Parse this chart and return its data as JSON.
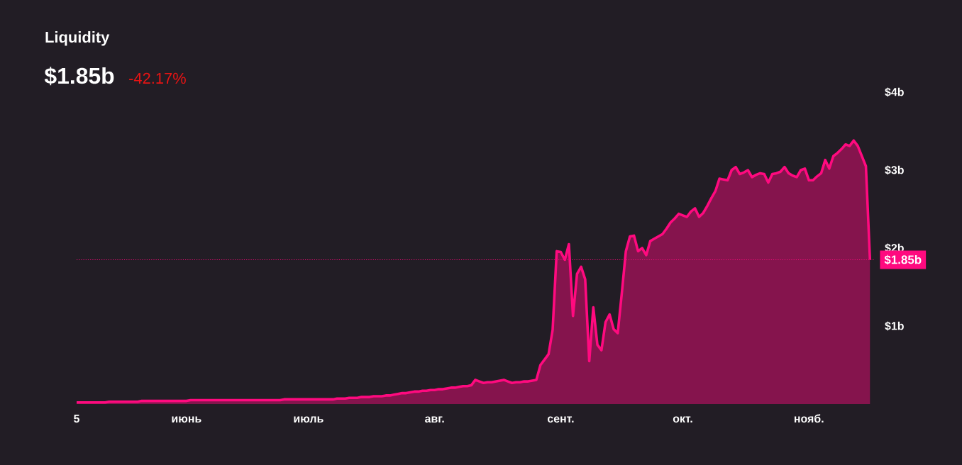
{
  "chart_data": {
    "type": "area",
    "title": "Liquidity",
    "subtitle": "$1.85b",
    "annotations": [
      "-42.17%"
    ],
    "categories": [
      "5",
      null,
      null,
      null,
      null,
      null,
      null,
      null,
      null,
      null,
      null,
      null,
      null,
      null,
      null,
      null,
      null,
      null,
      null,
      null,
      null,
      null,
      null,
      null,
      null,
      null,
      null,
      "июнь",
      null,
      null,
      null,
      null,
      null,
      null,
      null,
      null,
      null,
      null,
      null,
      null,
      null,
      null,
      null,
      null,
      null,
      null,
      null,
      null,
      null,
      null,
      null,
      null,
      null,
      null,
      null,
      null,
      null,
      "июль",
      null,
      null,
      null,
      null,
      null,
      null,
      null,
      null,
      null,
      null,
      null,
      null,
      null,
      null,
      null,
      null,
      null,
      null,
      null,
      null,
      null,
      null,
      null,
      null,
      null,
      null,
      null,
      null,
      null,
      null,
      "авг.",
      null,
      null,
      null,
      null,
      null,
      null,
      null,
      null,
      null,
      null,
      null,
      null,
      null,
      null,
      null,
      null,
      null,
      null,
      null,
      null,
      null,
      null,
      null,
      null,
      null,
      null,
      null,
      null,
      null,
      null,
      "сент.",
      null,
      null,
      null,
      null,
      null,
      null,
      null,
      null,
      null,
      null,
      null,
      null,
      null,
      null,
      null,
      null,
      null,
      null,
      null,
      null,
      null,
      null,
      null,
      null,
      null,
      null,
      null,
      null,
      null,
      "окт.",
      null,
      null,
      null,
      null,
      null,
      null,
      null,
      null,
      null,
      null,
      null,
      null,
      null,
      null,
      null,
      null,
      null,
      null,
      null,
      null,
      null,
      null,
      null,
      null,
      null,
      null,
      null,
      null,
      null,
      null,
      "нояб.",
      null,
      null,
      null,
      null,
      null,
      null,
      null,
      null,
      null,
      null,
      null,
      null,
      null,
      null,
      null
    ],
    "series": [
      {
        "color": "#ff0a7f",
        "values": [
          0.02,
          0.02,
          0.02,
          0.02,
          0.02,
          0.02,
          0.02,
          0.02,
          0.03,
          0.03,
          0.03,
          0.03,
          0.03,
          0.03,
          0.03,
          0.03,
          0.04,
          0.04,
          0.04,
          0.04,
          0.04,
          0.04,
          0.04,
          0.04,
          0.04,
          0.04,
          0.04,
          0.04,
          0.05,
          0.05,
          0.05,
          0.05,
          0.05,
          0.05,
          0.05,
          0.05,
          0.05,
          0.05,
          0.05,
          0.05,
          0.05,
          0.05,
          0.05,
          0.05,
          0.05,
          0.05,
          0.05,
          0.05,
          0.05,
          0.05,
          0.05,
          0.06,
          0.06,
          0.06,
          0.06,
          0.06,
          0.06,
          0.06,
          0.06,
          0.06,
          0.06,
          0.06,
          0.06,
          0.06,
          0.07,
          0.07,
          0.07,
          0.08,
          0.08,
          0.08,
          0.09,
          0.09,
          0.09,
          0.1,
          0.1,
          0.1,
          0.11,
          0.11,
          0.12,
          0.13,
          0.14,
          0.14,
          0.15,
          0.16,
          0.16,
          0.17,
          0.17,
          0.18,
          0.18,
          0.19,
          0.19,
          0.2,
          0.21,
          0.21,
          0.22,
          0.23,
          0.23,
          0.24,
          0.31,
          0.29,
          0.27,
          0.28,
          0.28,
          0.29,
          0.3,
          0.31,
          0.29,
          0.27,
          0.28,
          0.28,
          0.29,
          0.29,
          0.3,
          0.31,
          0.5,
          0.57,
          0.64,
          0.95,
          1.96,
          1.95,
          1.85,
          2.05,
          1.13,
          1.67,
          1.76,
          1.6,
          0.55,
          1.24,
          0.76,
          0.69,
          1.05,
          1.15,
          0.96,
          0.91,
          1.42,
          1.96,
          2.15,
          2.16,
          1.96,
          2.0,
          1.91,
          2.09,
          2.12,
          2.15,
          2.18,
          2.25,
          2.33,
          2.38,
          2.44,
          2.42,
          2.4,
          2.47,
          2.51,
          2.4,
          2.45,
          2.54,
          2.64,
          2.73,
          2.89,
          2.88,
          2.87,
          3.0,
          3.04,
          2.95,
          2.97,
          3.0,
          2.91,
          2.94,
          2.96,
          2.95,
          2.84,
          2.95,
          2.96,
          2.98,
          3.04,
          2.96,
          2.93,
          2.91,
          3.0,
          3.02,
          2.87,
          2.87,
          2.92,
          2.96,
          3.13,
          3.02,
          3.18,
          3.22,
          3.27,
          3.33,
          3.31,
          3.38,
          3.31,
          3.18,
          3.05,
          1.85
        ]
      }
    ],
    "ylim": [
      0,
      4
    ],
    "yticks": [
      {
        "value": 1,
        "label": "$1b"
      },
      {
        "value": 2,
        "label": "$2b"
      },
      {
        "value": 3,
        "label": "$3b"
      },
      {
        "value": 4,
        "label": "$4b"
      }
    ],
    "ref_lines": [
      {
        "axis": "y",
        "value": 1.85,
        "label": "$1.85b",
        "color": "#ff0a7f",
        "line_style": "dotted"
      }
    ],
    "grid": false
  }
}
